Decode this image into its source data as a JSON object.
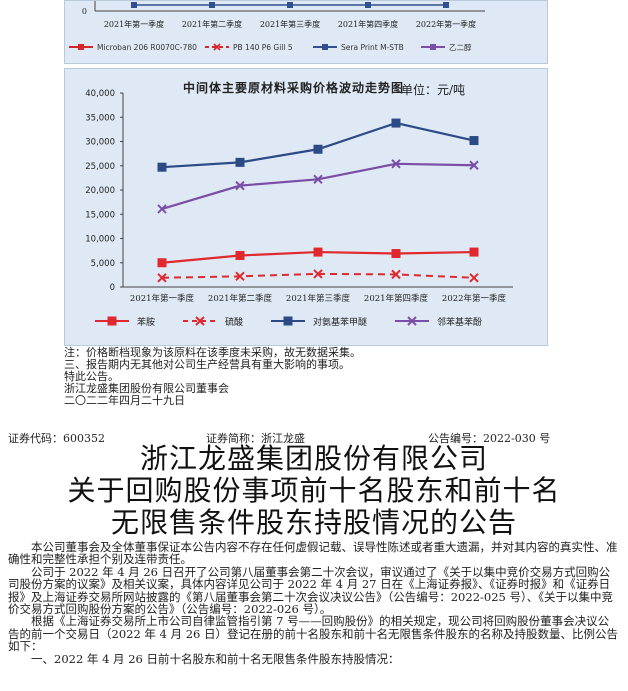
{
  "top_chart": {
    "categories": [
      "2021年第一季度",
      "2021年第二季度",
      "2021年第三季度",
      "2021年第四季度",
      "2022年第一季度"
    ],
    "y_tick": "0",
    "legend": [
      "Microban 206 R0070C-780",
      "PB 140 P6 Gill 5",
      "Sera Print M-STB",
      "乙二醇"
    ],
    "colors": [
      "#d62728",
      "#d62728",
      "#2f4f8f",
      "#7b4fa8"
    ]
  },
  "chart_data": {
    "type": "line",
    "title": "中间体主要原材料采购价格波动走势图",
    "unit": "单位：元/吨",
    "categories": [
      "2021年第一季度",
      "2021年第二季度",
      "2021年第三季度",
      "2021年第四季度",
      "2022年第一季度"
    ],
    "ylim": [
      0,
      40000
    ],
    "yticks": [
      "0",
      "5,000",
      "10,000",
      "15,000",
      "20,000",
      "25,000",
      "30,000",
      "35,000",
      "40,000"
    ],
    "grid": false,
    "legend_position": "bottom",
    "series": [
      {
        "name": "苯胺",
        "values": [
          5000,
          6500,
          7200,
          6900,
          7200
        ],
        "color": "#e0282e",
        "style": "solid",
        "marker": "square"
      },
      {
        "name": "硫酸",
        "values": [
          1900,
          2200,
          2700,
          2600,
          1900
        ],
        "color": "#e0282e",
        "style": "dashed",
        "marker": "x"
      },
      {
        "name": "对氨基苯甲醚",
        "values": [
          24700,
          25700,
          28400,
          33800,
          30200
        ],
        "color": "#2b4a86",
        "style": "solid",
        "marker": "square"
      },
      {
        "name": "邻苯基苯酚",
        "values": [
          16100,
          20900,
          22200,
          25400,
          25100
        ],
        "color": "#7a4ea6",
        "style": "solid",
        "marker": "x"
      }
    ]
  },
  "notes": [
    "注：价格断档现象为该原料在该季度未采购，故无数据采集。",
    "三、报告期内无其他对公司生产经营具有重大影响的事项。",
    "特此公告。",
    "浙江龙盛集团股份有限公司董事会",
    "二〇二二年四月二十九日"
  ],
  "header": {
    "security_code": "证券代码：600352",
    "security_name": "证券简称：浙江龙盛",
    "announcement_no": "公告编号：2022-030 号"
  },
  "headline": [
    "浙江龙盛集团股份有限公司",
    "关于回购股份事项前十名股东和前十名",
    "无限售条件股东持股情况的公告"
  ],
  "body": {
    "p1": "本公司董事会及全体董事保证本公告内容不存在任何虚假记载、误导性陈述或者重大遗漏，并对其内容的真实性、准确性和完整性承担个别及连带责任。",
    "p2": "公司于 2022 年 4 月 26 日召开了公司第八届董事会第二十次会议，审议通过了《关于以集中竞价交易方式回购公司股份方案的议案》及相关议案，具体内容详见公司于 2022 年 4 月 27 日在《上海证券报》、《证券时报》和《证券日报》及上海证券交易所网站披露的《第八届董事会第二十次会议决议公告》（公告编号：2022-025 号）、《关于以集中竞价交易方式回购股份方案的公告》（公告编号：2022-026 号）。",
    "p3": "根据《上海证券交易所上市公司自律监管指引第 7 号——回购股份》的相关规定，现公司将回购股份董事会决议公告的前一个交易日（2022 年 4 月 26 日）登记在册的前十名股东和前十名无限售条件股东的名称及持股数量、比例公告如下：",
    "p4": "一、2022 年 4 月 26 日前十名股东和前十名无限售条件股东持股情况："
  }
}
